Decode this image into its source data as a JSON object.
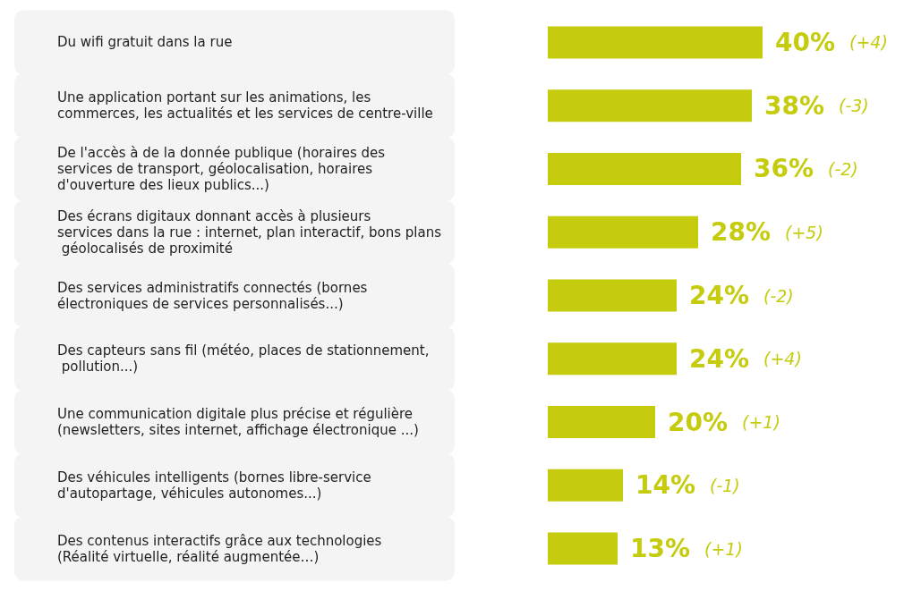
{
  "chart_data": {
    "type": "bar",
    "orientation": "horizontal",
    "categories": [
      "Du wifi gratuit dans la rue",
      "Une application portant sur les animations, les commerces, les actualités et les services de centre-ville",
      "De l'accès à de la donnée publique (horaires des services de transport, géolocalisation, horaires d'ouverture des lieux publics...)",
      "Des écrans digitaux donnant accès à plusieurs services dans la rue : internet, plan interactif, bons plans géolocalisés de proximité",
      "Des services administratifs connectés (bornes électroniques de services personnalisés...)",
      "Des capteurs sans fil (météo, places de stationnement, pollution...)",
      "Une communication digitale plus précise et régulière (newsletters, sites internet, affichage électronique ...)",
      "Des véhicules intelligents (bornes libre-service d'autopartage, véhicules autonomes...)",
      "Des contenus interactifs grâce aux technologies (Réalité virtuelle, réalité augmentée…)"
    ],
    "values": [
      40,
      38,
      36,
      28,
      24,
      24,
      20,
      14,
      13
    ],
    "value_labels": [
      "40%",
      "38%",
      "36%",
      "28%",
      "24%",
      "24%",
      "20%",
      "14%",
      "13%"
    ],
    "color": "#c5cc0e",
    "annotations": [
      "(+4)",
      "(-3)",
      "(-2)",
      "(+5)",
      "(-2)",
      "(+4)",
      "(+1)",
      "(-1)",
      "(+1)"
    ],
    "grid": false
  }
}
